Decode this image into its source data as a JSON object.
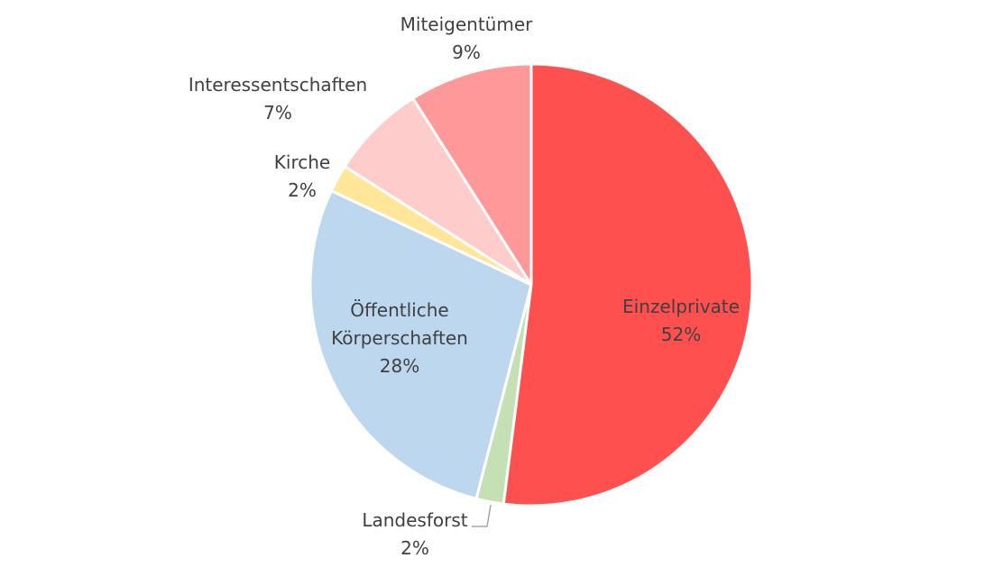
{
  "chart_data": {
    "type": "pie",
    "categories": [
      "Einzelprivate",
      "Landesforst",
      "Öffentliche Körperschaften",
      "Kirche",
      "Interessentschaften",
      "Miteigentümer"
    ],
    "values": [
      52,
      2,
      28,
      2,
      7,
      9
    ],
    "value_labels": [
      "52%",
      "2%",
      "28%",
      "2%",
      "7%",
      "9%"
    ],
    "colors": [
      "#ff5050",
      "#c5e0b4",
      "#bdd7ee",
      "#ffe699",
      "#ffcccc",
      "#ff9999"
    ]
  }
}
